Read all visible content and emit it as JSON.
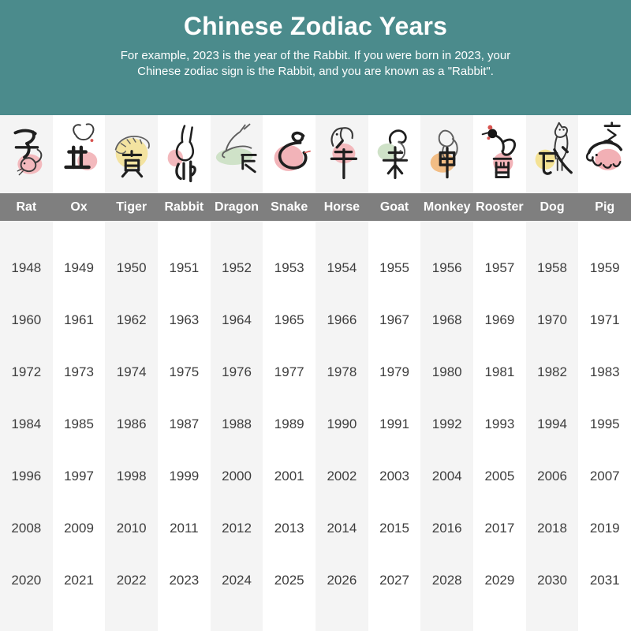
{
  "header": {
    "title": "Chinese Zodiac Years",
    "subtitle_lines": [
      "For example, 2023 is the year of the Rabbit. If you were born in 2023, your",
      "Chinese zodiac sign is the Rabbit, and you are known as a \"Rabbit\"."
    ]
  },
  "colors": {
    "header_bg": "#4b8b8c",
    "band_bg": "#7f7f7f",
    "stripe": "#f4f4f4",
    "year_text": "#3d3d3d",
    "header_text": "#ffffff"
  },
  "zodiac": {
    "animals": [
      {
        "name": "Rat",
        "character": "子",
        "blob_color": "#f3b9bd"
      },
      {
        "name": "Ox",
        "character": "丑",
        "blob_color": "#f3b9bd"
      },
      {
        "name": "Tiger",
        "character": "寅",
        "blob_color": "#f3e3a0"
      },
      {
        "name": "Rabbit",
        "character": "卯",
        "blob_color": "#f3b9bd"
      },
      {
        "name": "Dragon",
        "character": "辰",
        "blob_color": "#cfe2c8"
      },
      {
        "name": "Snake",
        "character": "巳",
        "blob_color": "#f2b3b8"
      },
      {
        "name": "Horse",
        "character": "午",
        "blob_color": "#f3b9bd"
      },
      {
        "name": "Goat",
        "character": "未",
        "blob_color": "#cfe2c8"
      },
      {
        "name": "Monkey",
        "character": "申",
        "blob_color": "#f2bd85"
      },
      {
        "name": "Rooster",
        "character": "酉",
        "blob_color": "#f2b3b8"
      },
      {
        "name": "Dog",
        "character": "戌",
        "blob_color": "#f4e294"
      },
      {
        "name": "Pig",
        "character": "亥",
        "blob_color": "#f2b0b5"
      }
    ]
  },
  "chart_data": {
    "type": "table",
    "title": "Chinese Zodiac Years",
    "subtitle": "For example, 2023 is the year of the Rabbit. If you were born in 2023, your Chinese zodiac sign is the Rabbit, and you are known as a \"Rabbit\".",
    "columns": [
      "Rat",
      "Ox",
      "Tiger",
      "Rabbit",
      "Dragon",
      "Snake",
      "Horse",
      "Goat",
      "Monkey",
      "Rooster",
      "Dog",
      "Pig"
    ],
    "rows": [
      [
        1948,
        1949,
        1950,
        1951,
        1952,
        1953,
        1954,
        1955,
        1956,
        1957,
        1958,
        1959
      ],
      [
        1960,
        1961,
        1962,
        1963,
        1964,
        1965,
        1966,
        1967,
        1968,
        1969,
        1970,
        1971
      ],
      [
        1972,
        1973,
        1974,
        1975,
        1976,
        1977,
        1978,
        1979,
        1980,
        1981,
        1982,
        1983
      ],
      [
        1984,
        1985,
        1986,
        1987,
        1988,
        1989,
        1990,
        1991,
        1992,
        1993,
        1994,
        1995
      ],
      [
        1996,
        1997,
        1998,
        1999,
        2000,
        2001,
        2002,
        2003,
        2004,
        2005,
        2006,
        2007
      ],
      [
        2008,
        2009,
        2010,
        2011,
        2012,
        2013,
        2014,
        2015,
        2016,
        2017,
        2018,
        2019
      ],
      [
        2020,
        2021,
        2022,
        2023,
        2024,
        2025,
        2026,
        2027,
        2028,
        2029,
        2030,
        2031
      ]
    ]
  }
}
